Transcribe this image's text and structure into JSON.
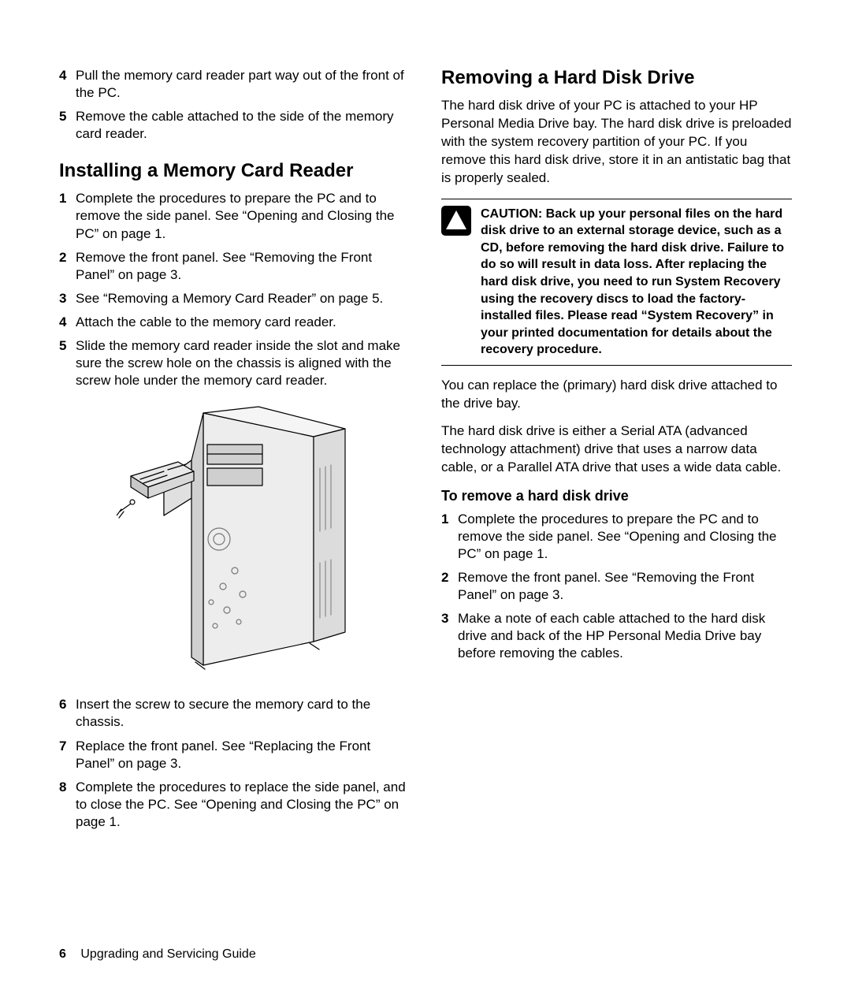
{
  "left": {
    "pre_steps": [
      {
        "n": "4",
        "t": "Pull the memory card reader part way out of the front of the PC."
      },
      {
        "n": "5",
        "t": "Remove the cable attached to the side of the memory card reader."
      }
    ],
    "h2": "Installing a Memory Card Reader",
    "steps_a": [
      {
        "n": "1",
        "t": "Complete the procedures to prepare the PC and to remove the side panel. See “Opening and Closing the PC” on page 1."
      },
      {
        "n": "2",
        "t": "Remove the front panel. See “Removing the Front Panel” on page 3."
      },
      {
        "n": "3",
        "t": "See “Removing a Memory Card Reader” on page 5."
      },
      {
        "n": "4",
        "t": "Attach the cable to the memory card reader."
      },
      {
        "n": "5",
        "t": "Slide the memory card reader inside the slot and make sure the screw hole on the chassis is aligned with the screw hole under the memory card reader."
      }
    ],
    "steps_b": [
      {
        "n": "6",
        "t": "Insert the screw to secure the memory card to the chassis."
      },
      {
        "n": "7",
        "t": "Replace the front panel. See “Replacing the Front Panel” on page 3."
      },
      {
        "n": "8",
        "t": "Complete the procedures to replace the side panel, and to close the PC. See “Opening and Closing the PC” on page 1."
      }
    ]
  },
  "right": {
    "h2": "Removing a Hard Disk Drive",
    "intro": "The hard disk drive of your PC is attached to your HP Personal Media Drive bay. The hard disk drive is preloaded with the system recovery partition of your PC. If you remove this hard disk drive, store it in an antistatic bag that is properly sealed.",
    "caution_lead": "CAUTION:",
    "caution_body": " Back up your personal files on the hard disk drive to an external storage device, such as a CD, before removing the hard disk drive. Failure to do so will result in data loss. After replacing the hard disk drive, you need to run System Recovery using the recovery discs to load the factory-installed files. Please read “System Recovery” in your printed documentation for details about the recovery procedure.",
    "after1": "You can replace the (primary) hard disk drive attached to the drive bay.",
    "after2": "The hard disk drive is either a Serial ATA (advanced technology attachment) drive that uses a narrow data cable, or a Parallel ATA drive that uses a wide data cable.",
    "h3": "To remove a hard disk drive",
    "steps": [
      {
        "n": "1",
        "t": "Complete the procedures to prepare the PC and to remove the side panel. See “Opening and Closing the PC” on page 1."
      },
      {
        "n": "2",
        "t": "Remove the front panel. See “Removing the Front Panel” on page 3."
      },
      {
        "n": "3",
        "t": "Make a note of each cable attached to the hard disk drive and back of the HP Personal Media Drive bay before removing the cables."
      }
    ]
  },
  "footer": {
    "page": "6",
    "title": "Upgrading and Servicing Guide"
  },
  "figure": {
    "stroke": "#000000",
    "fill_body": "#eaeaea",
    "fill_dark": "#bfbfbf",
    "fill_front": "#cfcfcf"
  }
}
